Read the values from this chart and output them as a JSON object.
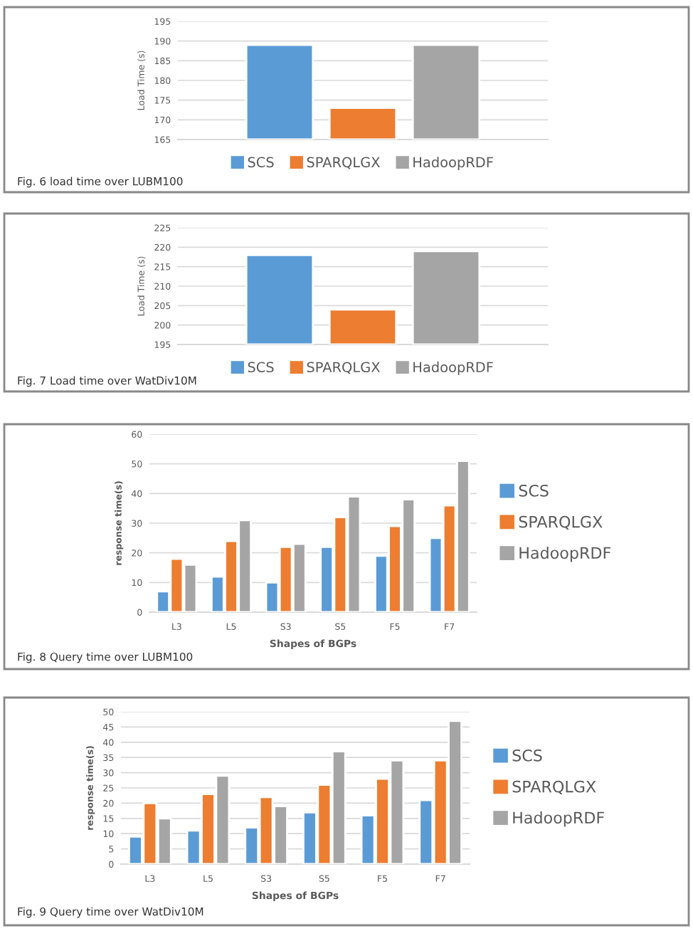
{
  "chart_data": [
    {
      "type": "bar",
      "categories": [
        null
      ],
      "ylabel": "Load Time (s)",
      "ylim": [
        165,
        195
      ],
      "yticks": [
        165,
        170,
        175,
        180,
        185,
        190,
        195
      ],
      "grid": "y",
      "legend": "bottom",
      "annotations": [
        "Fig. 6 load time over LUBM100"
      ],
      "series": [
        {
          "name": "SCS",
          "color": "#5b9bd5",
          "values": [
            189
          ]
        },
        {
          "name": "SPARQLGX",
          "color": "#ed7d31",
          "values": [
            173
          ]
        },
        {
          "name": "HadoopRDF",
          "color": "#a5a5a5",
          "values": [
            189
          ]
        }
      ]
    },
    {
      "type": "bar",
      "categories": [
        null
      ],
      "ylabel": "Load Time (s)",
      "ylim": [
        195,
        225
      ],
      "yticks": [
        195,
        200,
        205,
        210,
        215,
        220,
        225
      ],
      "grid": "y",
      "legend": "bottom",
      "annotations": [
        "Fig. 7 Load time over WatDiv10M"
      ],
      "series": [
        {
          "name": "SCS",
          "color": "#5b9bd5",
          "values": [
            218
          ]
        },
        {
          "name": "SPARQLGX",
          "color": "#ed7d31",
          "values": [
            204
          ]
        },
        {
          "name": "HadoopRDF",
          "color": "#a5a5a5",
          "values": [
            219
          ]
        }
      ]
    },
    {
      "type": "bar",
      "categories": [
        "L3",
        "L5",
        "S3",
        "S5",
        "F5",
        "F7"
      ],
      "xlabel": "Shapes of BGPs",
      "ylabel": "response time(s)",
      "ylim": [
        0,
        60
      ],
      "yticks": [
        0,
        10,
        20,
        30,
        40,
        50,
        60
      ],
      "grid": "y",
      "legend": "right",
      "annotations": [
        "Fig. 8 Query time over LUBM100"
      ],
      "series": [
        {
          "name": "SCS",
          "color": "#5b9bd5",
          "values": [
            7,
            12,
            10,
            22,
            19,
            25
          ]
        },
        {
          "name": "SPARQLGX",
          "color": "#ed7d31",
          "values": [
            18,
            24,
            22,
            32,
            29,
            36
          ]
        },
        {
          "name": "HadoopRDF",
          "color": "#a5a5a5",
          "values": [
            16,
            31,
            23,
            39,
            38,
            51
          ]
        }
      ]
    },
    {
      "type": "bar",
      "categories": [
        "L3",
        "L5",
        "S3",
        "S5",
        "F5",
        "F7"
      ],
      "xlabel": "Shapes of BGPs",
      "ylabel": "response time(s)",
      "ylim": [
        0,
        50
      ],
      "yticks": [
        0,
        5,
        10,
        15,
        20,
        25,
        30,
        35,
        40,
        45,
        50
      ],
      "grid": "y",
      "legend": "right",
      "annotations": [
        "Fig. 9 Query time over WatDiv10M"
      ],
      "series": [
        {
          "name": "SCS",
          "color": "#5b9bd5",
          "values": [
            9,
            11,
            12,
            17,
            16,
            21
          ]
        },
        {
          "name": "SPARQLGX",
          "color": "#ed7d31",
          "values": [
            20,
            23,
            22,
            26,
            28,
            34
          ]
        },
        {
          "name": "HadoopRDF",
          "color": "#a5a5a5",
          "values": [
            15,
            29,
            19,
            37,
            34,
            47
          ]
        }
      ]
    }
  ]
}
